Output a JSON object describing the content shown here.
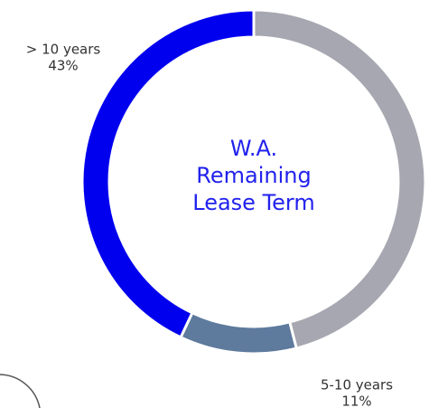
{
  "chart_data": {
    "type": "donut",
    "categories": [
      null,
      "5-10 years",
      "> 10 years"
    ],
    "values": [
      46,
      11,
      43
    ],
    "value_labels": [
      null,
      "11%",
      "43%"
    ],
    "colors": [
      "#a7a7b1",
      "#5e7a9d",
      "#0000ee"
    ],
    "center_label": [
      "W.A.",
      "Remaining",
      "Lease Term"
    ]
  }
}
